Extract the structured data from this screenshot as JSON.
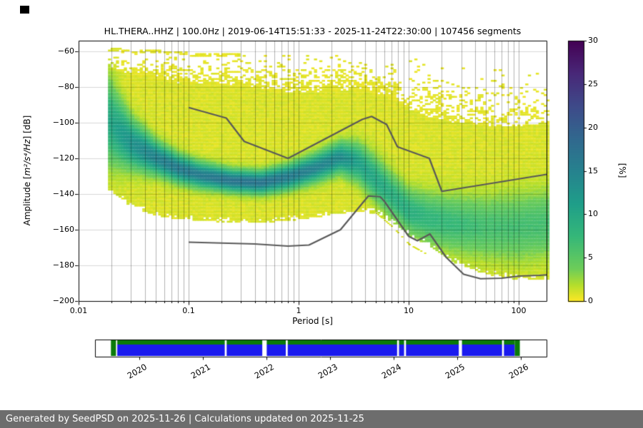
{
  "page": {
    "footer_text": "Generated by SeedPSD on 2025-11-26 | Calculations updated on 2025-11-25",
    "footer_bg": "#6d6d6d"
  },
  "chart_data": {
    "type": "heatmap",
    "subtype": "ppsd-probability-density",
    "title": "HL.THERA..HHZ | 100.0Hz | 2019-06-14T15:51:33 - 2025-11-24T22:30:00 | 107456 segments",
    "xlabel": "Period [s]",
    "ylabel": "Amplitude [m²/s⁴/Hz] [dB]",
    "ylabel_parts": {
      "prefix": "Amplitude [",
      "math": "m²/s⁴/Hz",
      "suffix": "] [dB]"
    },
    "xscale": "log",
    "xlim": [
      0.01,
      179
    ],
    "ylim": [
      -200,
      -54
    ],
    "x_ticks": [
      0.01,
      0.1,
      1,
      10,
      100
    ],
    "x_tick_labels": [
      "0.01",
      "0.1",
      "1",
      "10",
      "100"
    ],
    "y_ticks": [
      -200,
      -180,
      -160,
      -140,
      -120,
      -100,
      -80,
      -60
    ],
    "y_tick_labels": [
      "−200",
      "−180",
      "−160",
      "−140",
      "−120",
      "−100",
      "−80",
      "−60"
    ],
    "grid": "both",
    "colorbar": {
      "label": "[%]",
      "min": 0,
      "max": 30,
      "ticks": [
        0,
        5,
        10,
        15,
        20,
        25,
        30
      ],
      "tick_labels": [
        "0",
        "5",
        "10",
        "15",
        "20",
        "25",
        "30"
      ],
      "colormap": "viridis_r",
      "stops": [
        [
          0,
          "#440154"
        ],
        [
          0.125,
          "#482878"
        ],
        [
          0.25,
          "#3e4a89"
        ],
        [
          0.375,
          "#31688e"
        ],
        [
          0.5,
          "#26828e"
        ],
        [
          0.625,
          "#1f9e89"
        ],
        [
          0.75,
          "#35b779"
        ],
        [
          0.875,
          "#6dcd59"
        ],
        [
          0.9375,
          "#b4de2c"
        ],
        [
          1,
          "#fde725"
        ]
      ]
    },
    "density_ridge": {
      "note": "Estimated PPSD density: per period [s] the mode/sigma/peak of probability [%] and top/solid/bottom extents [dB] of non-zero probability.",
      "points": [
        {
          "p": 0.019,
          "mode": -100,
          "sigma": 15,
          "peak": 9,
          "top": -59,
          "solid": -70,
          "bottom": -138
        },
        {
          "p": 0.03,
          "mode": -112,
          "sigma": 9,
          "peak": 12,
          "top": -60,
          "solid": -73,
          "bottom": -147
        },
        {
          "p": 0.05,
          "mode": -120,
          "sigma": 6,
          "peak": 14,
          "top": -60,
          "solid": -76,
          "bottom": -152
        },
        {
          "p": 0.08,
          "mode": -126,
          "sigma": 5,
          "peak": 15,
          "top": -61,
          "solid": -78,
          "bottom": -154
        },
        {
          "p": 0.13,
          "mode": -130,
          "sigma": 4.5,
          "peak": 15,
          "top": -62,
          "solid": -79,
          "bottom": -155
        },
        {
          "p": 0.25,
          "mode": -133,
          "sigma": 4,
          "peak": 16,
          "top": -62,
          "solid": -80,
          "bottom": -156
        },
        {
          "p": 0.45,
          "mode": -134,
          "sigma": 4,
          "peak": 16,
          "top": -63,
          "solid": -82,
          "bottom": -156
        },
        {
          "p": 0.8,
          "mode": -131,
          "sigma": 4.5,
          "peak": 15,
          "top": -63,
          "solid": -84,
          "bottom": -155
        },
        {
          "p": 1.4,
          "mode": -126,
          "sigma": 5,
          "peak": 14,
          "top": -63,
          "solid": -84,
          "bottom": -153
        },
        {
          "p": 2.4,
          "mode": -120,
          "sigma": 5.5,
          "peak": 13,
          "top": -62,
          "solid": -83,
          "bottom": -151
        },
        {
          "p": 3.5,
          "mode": -123,
          "sigma": 7,
          "peak": 10,
          "top": -62,
          "solid": -82,
          "bottom": -150
        },
        {
          "p": 5,
          "mode": -132,
          "sigma": 8,
          "peak": 9,
          "top": -63,
          "solid": -84,
          "bottom": -151
        },
        {
          "p": 7,
          "mode": -141,
          "sigma": 8,
          "peak": 8,
          "top": -64,
          "solid": -88,
          "bottom": -156
        },
        {
          "p": 10,
          "mode": -150,
          "sigma": 8,
          "peak": 8,
          "top": -65,
          "solid": -93,
          "bottom": -163
        },
        {
          "p": 15,
          "mode": -154,
          "sigma": 9,
          "peak": 7,
          "top": -66,
          "solid": -97,
          "bottom": -169
        },
        {
          "p": 25,
          "mode": -157,
          "sigma": 10,
          "peak": 6.5,
          "top": -68,
          "solid": -100,
          "bottom": -178
        },
        {
          "p": 50,
          "mode": -159,
          "sigma": 11,
          "peak": 5.5,
          "top": -70,
          "solid": -102,
          "bottom": -185
        },
        {
          "p": 100,
          "mode": -159,
          "sigma": 12,
          "peak": 5.5,
          "top": -72,
          "solid": -103,
          "bottom": -188
        },
        {
          "p": 179,
          "mode": -157,
          "sigma": 12,
          "peak": 5.5,
          "top": -74,
          "solid": -100,
          "bottom": -188
        }
      ]
    },
    "noise_models": {
      "color": "#595959",
      "high": [
        [
          0.1,
          -91.5
        ],
        [
          0.22,
          -97.4
        ],
        [
          0.32,
          -110.5
        ],
        [
          0.8,
          -120.0
        ],
        [
          3.8,
          -98.1
        ],
        [
          4.6,
          -96.5
        ],
        [
          6.3,
          -101.0
        ],
        [
          7.9,
          -113.5
        ],
        [
          15.4,
          -120.0
        ],
        [
          20.0,
          -138.5
        ],
        [
          179,
          -129.0
        ]
      ],
      "low": [
        [
          0.1,
          -167.0
        ],
        [
          0.4,
          -168.0
        ],
        [
          0.8,
          -169.2
        ],
        [
          1.24,
          -168.6
        ],
        [
          2.4,
          -160.0
        ],
        [
          4.3,
          -141.1
        ],
        [
          5.5,
          -141.5
        ],
        [
          6.0,
          -144.0
        ],
        [
          10.0,
          -163.7
        ],
        [
          12.0,
          -166.2
        ],
        [
          15.6,
          -162.4
        ],
        [
          21.9,
          -175.5
        ],
        [
          31.6,
          -185.0
        ],
        [
          45.0,
          -187.5
        ],
        [
          70.0,
          -187.2
        ],
        [
          101.0,
          -186.0
        ],
        [
          154.0,
          -185.6
        ],
        [
          179.0,
          -185.3
        ]
      ]
    },
    "outlier_track": [
      [
        4.5,
        -148
      ],
      [
        7,
        -158
      ],
      [
        10,
        -168
      ],
      [
        14,
        -173
      ]
    ]
  },
  "timeline": {
    "axis_range_years": [
      2019.3,
      2026.4
    ],
    "tick_years": [
      2020,
      2021,
      2022,
      2023,
      2024,
      2025,
      2026
    ],
    "tick_labels": [
      "2020",
      "2021",
      "2022",
      "2023",
      "2024",
      "2025",
      "2026"
    ],
    "data_span": [
      2019.65,
      2025.9
    ],
    "gaps": [
      [
        2021.34,
        2021.37
      ],
      [
        2021.93,
        2022.0
      ],
      [
        2022.3,
        2022.33
      ],
      [
        2024.05,
        2024.08
      ],
      [
        2024.16,
        2024.19
      ],
      [
        2025.02,
        2025.07
      ],
      [
        2025.7,
        2025.73
      ]
    ],
    "full_blocks": [
      [
        2019.55,
        2019.63
      ],
      [
        2025.9,
        2025.98
      ]
    ],
    "colors": {
      "data": "#1a1aee",
      "full": "#0a7a0a",
      "background": "#ffffff"
    }
  }
}
